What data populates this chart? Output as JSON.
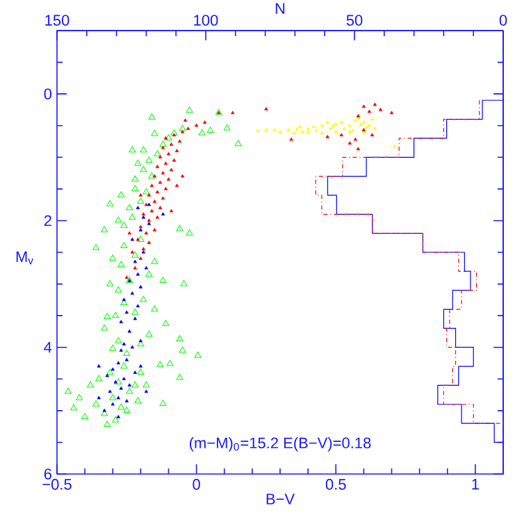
{
  "chart_data": {
    "type": "scatter",
    "xlabel": "B−V",
    "ylabel": "M$_{v}$",
    "x2label": "N",
    "xlim": [
      -0.5,
      1.1
    ],
    "ylim": [
      6,
      -1
    ],
    "x2lim": [
      150,
      0
    ],
    "xticks": [
      {
        "value": -0.5,
        "label": "−0.5"
      },
      {
        "value": -0.4,
        "label": null
      },
      {
        "value": -0.3,
        "label": null
      },
      {
        "value": -0.2,
        "label": null
      },
      {
        "value": -0.1,
        "label": null
      },
      0,
      {
        "value": 0.1,
        "label": null
      },
      {
        "value": 0.2,
        "label": null
      },
      {
        "value": 0.3,
        "label": null
      },
      {
        "value": 0.4,
        "label": null
      },
      0.5,
      {
        "value": 0.6,
        "label": null
      },
      {
        "value": 0.7,
        "label": null
      },
      {
        "value": 0.8,
        "label": null
      },
      {
        "value": 0.9,
        "label": null
      },
      1
    ],
    "yticks": [
      {
        "value": -0.5,
        "label": null
      },
      0,
      {
        "value": 0.5,
        "label": null
      },
      {
        "value": 1,
        "label": null
      },
      {
        "value": 1.5,
        "label": null
      },
      2,
      {
        "value": 2.5,
        "label": null
      },
      {
        "value": 3,
        "label": null
      },
      {
        "value": 3.5,
        "label": null
      },
      4,
      {
        "value": 4.5,
        "label": null
      },
      {
        "value": 5,
        "label": null
      },
      {
        "value": 5.5,
        "label": null
      },
      6
    ],
    "x2ticks": [
      150,
      {
        "value": 140,
        "label": null
      },
      {
        "value": 130,
        "label": null
      },
      {
        "value": 120,
        "label": null
      },
      {
        "value": 110,
        "label": null
      },
      100,
      {
        "value": 90,
        "label": null
      },
      {
        "value": 80,
        "label": null
      },
      {
        "value": 70,
        "label": null
      },
      {
        "value": 60,
        "label": null
      },
      50,
      {
        "value": 40,
        "label": null
      },
      {
        "value": 30,
        "label": null
      },
      {
        "value": 20,
        "label": null
      },
      {
        "value": 10,
        "label": null
      },
      0
    ],
    "annotations": [
      "(m−M)$_{0}$=15.2   E(B−V)=0.18"
    ],
    "series": [
      {
        "color": "#00ff00",
        "marker": "triangle-open",
        "x": [
          -0.46,
          -0.44,
          -0.42,
          -0.4,
          -0.38,
          -0.36,
          -0.35,
          -0.33,
          -0.32,
          -0.31,
          -0.3,
          -0.29,
          -0.28,
          -0.27,
          -0.26,
          -0.25,
          -0.24,
          -0.22,
          -0.21,
          -0.2,
          -0.18,
          -0.12,
          -0.13,
          -0.06,
          -0.05,
          0.005,
          -0.095,
          -0.06,
          -0.11,
          -0.17,
          -0.2,
          -0.25,
          -0.28,
          -0.3,
          -0.33,
          -0.29,
          -0.32,
          -0.26,
          -0.22,
          -0.19,
          -0.15,
          -0.28,
          -0.31,
          -0.24,
          -0.045,
          -0.12,
          -0.17,
          -0.27,
          -0.3,
          -0.22,
          -0.15,
          -0.36,
          -0.26,
          -0.2,
          -0.33,
          -0.26,
          -0.025,
          -0.06,
          -0.28,
          -0.23,
          -0.31,
          -0.27,
          -0.24,
          -0.2,
          -0.22,
          -0.18,
          -0.22,
          -0.19,
          -0.16,
          -0.23,
          -0.19,
          -0.16,
          -0.15,
          -0.17,
          -0.14,
          -0.12,
          -0.1,
          -0.08,
          -0.025,
          0.02,
          0.05,
          0.08,
          0.11,
          0.15,
          -0.05,
          -0.21
        ],
        "values": [
          4.7,
          4.96,
          4.8,
          5.1,
          4.6,
          4.9,
          4.5,
          5.05,
          5.22,
          4.4,
          4.8,
          5.15,
          4.55,
          4.95,
          4.3,
          5.0,
          4.7,
          4.6,
          4.85,
          4.4,
          4.6,
          4.89,
          4.28,
          4.48,
          4.05,
          4.13,
          4.26,
          3.87,
          3.63,
          3.8,
          3.95,
          4.1,
          3.9,
          4.02,
          3.7,
          3.5,
          3.52,
          3.3,
          3.45,
          3.25,
          3.4,
          3.1,
          3.0,
          2.95,
          3.0,
          2.95,
          2.85,
          2.7,
          2.6,
          2.55,
          2.65,
          2.43,
          2.4,
          2.3,
          2.15,
          2.08,
          2.2,
          2.13,
          2.0,
          1.95,
          1.74,
          1.6,
          1.8,
          1.7,
          1.5,
          1.55,
          1.35,
          1.2,
          1.3,
          0.89,
          0.89,
          0.37,
          0.63,
          1.05,
          0.95,
          0.8,
          0.7,
          0.62,
          0.26,
          0.62,
          0.58,
          0.3,
          0.54,
          0.79,
          0.55,
          1.1
        ]
      },
      {
        "color": "#ffff00",
        "marker": "triangle",
        "x": [
          0.22,
          0.25,
          0.28,
          0.3,
          0.33,
          0.36,
          0.38,
          0.4,
          0.42,
          0.45,
          0.48,
          0.5,
          0.52,
          0.55,
          0.57,
          0.6,
          0.62,
          0.64,
          0.5,
          0.45,
          0.55,
          0.58,
          0.6,
          0.35,
          0.71,
          0.4,
          0.47,
          0.53,
          0.59,
          0.63,
          0.43,
          0.37,
          0.56,
          0.61,
          0.49
        ],
        "values": [
          0.58,
          0.57,
          0.57,
          0.6,
          0.57,
          0.56,
          0.6,
          0.55,
          0.52,
          0.5,
          0.55,
          0.48,
          0.45,
          0.5,
          0.42,
          0.45,
          0.5,
          0.55,
          0.6,
          0.62,
          0.6,
          0.38,
          0.6,
          0.62,
          0.83,
          0.6,
          0.45,
          0.55,
          0.48,
          0.4,
          0.58,
          0.52,
          0.58,
          0.53,
          0.5
        ]
      },
      {
        "color": "#ff0000",
        "marker": "triangle",
        "x": [
          -0.25,
          -0.22,
          -0.2,
          -0.23,
          -0.19,
          -0.17,
          -0.21,
          -0.18,
          -0.15,
          -0.2,
          -0.17,
          -0.14,
          -0.19,
          -0.16,
          -0.13,
          -0.18,
          -0.15,
          -0.12,
          -0.17,
          -0.14,
          -0.11,
          -0.16,
          -0.13,
          -0.1,
          -0.15,
          -0.12,
          -0.09,
          -0.14,
          -0.11,
          -0.08,
          -0.13,
          -0.1,
          -0.07,
          -0.12,
          -0.09,
          -0.06,
          -0.11,
          -0.08,
          -0.05,
          -0.03,
          0.0,
          0.03,
          -0.04,
          0.08,
          0.13,
          0.25,
          -0.07,
          -0.05,
          -0.2,
          -0.09,
          -0.24,
          0.34,
          0.47,
          0.52,
          0.57,
          0.58,
          0.6,
          0.62,
          0.64,
          0.6,
          0.58,
          0.55,
          0.66,
          0.7,
          0.63
        ],
        "values": [
          2.9,
          2.75,
          2.6,
          2.5,
          2.45,
          2.35,
          2.3,
          2.2,
          2.15,
          2.1,
          2.0,
          1.95,
          1.9,
          1.85,
          1.8,
          1.75,
          1.7,
          1.65,
          1.6,
          1.55,
          1.5,
          1.45,
          1.4,
          1.35,
          1.3,
          1.25,
          1.2,
          1.15,
          1.1,
          1.05,
          1.0,
          0.95,
          0.9,
          0.85,
          0.8,
          0.75,
          0.7,
          0.65,
          0.6,
          0.55,
          0.5,
          0.45,
          0.42,
          0.3,
          0.3,
          0.24,
          1.45,
          1.3,
          1.6,
          1.85,
          2.2,
          0.72,
          0.68,
          0.65,
          0.72,
          0.87,
          0.57,
          0.28,
          0.17,
          0.2,
          0.35,
          0.78,
          0.25,
          0.3,
          0.65
        ]
      },
      {
        "color": "#0000ff",
        "marker": "triangle",
        "x": [
          -0.33,
          -0.3,
          -0.28,
          -0.31,
          -0.27,
          -0.29,
          -0.26,
          -0.32,
          -0.24,
          -0.3,
          -0.28,
          -0.25,
          -0.35,
          -0.22,
          -0.27,
          -0.23,
          -0.26,
          -0.2,
          -0.24,
          -0.27,
          -0.22,
          -0.25,
          -0.21,
          -0.26,
          -0.23,
          -0.2,
          -0.24,
          -0.21,
          -0.18,
          -0.22,
          -0.19,
          -0.23,
          -0.2,
          -0.17,
          -0.21,
          -0.17,
          -0.12,
          -0.19,
          -0.28,
          -0.25,
          -0.35,
          -0.18,
          -0.2
        ],
        "values": [
          5.0,
          4.9,
          4.8,
          4.7,
          4.65,
          4.55,
          4.5,
          4.45,
          4.6,
          4.35,
          4.25,
          4.2,
          4.3,
          4.4,
          4.05,
          4.0,
          3.95,
          3.9,
          3.75,
          3.6,
          3.55,
          3.45,
          3.35,
          3.25,
          3.15,
          3.05,
          2.95,
          2.85,
          2.75,
          2.65,
          2.5,
          2.3,
          2.15,
          2.05,
          1.8,
          1.75,
          1.9,
          1.95,
          5.1,
          4.85,
          4.8,
          4.7,
          4.3
        ]
      },
      {
        "type": "line",
        "axis": "x2",
        "color": "#0000ff",
        "line_style": "solid",
        "x": [
          0,
          7,
          7,
          19,
          19,
          30,
          30,
          46,
          46,
          59,
          59,
          56,
          56,
          44,
          44,
          27,
          27,
          13,
          13,
          11,
          11,
          17,
          17,
          20,
          20,
          16,
          16,
          10,
          10,
          15,
          15,
          22,
          22,
          14,
          14,
          3,
          3,
          0
        ],
        "values": [
          0.1,
          0.1,
          0.4,
          0.4,
          0.7,
          0.7,
          1.0,
          1.0,
          1.3,
          1.3,
          1.6,
          1.6,
          1.9,
          1.9,
          2.2,
          2.2,
          2.5,
          2.5,
          2.8,
          2.8,
          3.1,
          3.1,
          3.4,
          3.4,
          3.7,
          3.7,
          4.0,
          4.0,
          4.3,
          4.3,
          4.6,
          4.6,
          4.9,
          4.9,
          5.2,
          5.2,
          5.5,
          5.5
        ]
      },
      {
        "type": "line",
        "axis": "x2",
        "color": "#ff0000",
        "line_style": "dashdot",
        "x": [
          8,
          8,
          20,
          20,
          35,
          35,
          54,
          54,
          63,
          63,
          61,
          61,
          44,
          44,
          27,
          27,
          15,
          15,
          9,
          9,
          14,
          14,
          18,
          18,
          19,
          19,
          16,
          16,
          17,
          17,
          20,
          20,
          10,
          10,
          0
        ],
        "values": [
          0.1,
          0.4,
          0.4,
          0.7,
          0.7,
          1.0,
          1.0,
          1.3,
          1.3,
          1.6,
          1.6,
          1.9,
          1.9,
          2.2,
          2.2,
          2.5,
          2.5,
          2.8,
          2.8,
          3.1,
          3.1,
          3.4,
          3.4,
          3.7,
          3.7,
          4.0,
          4.0,
          4.3,
          4.3,
          4.6,
          4.6,
          4.9,
          4.9,
          5.2,
          5.2
        ]
      }
    ]
  }
}
